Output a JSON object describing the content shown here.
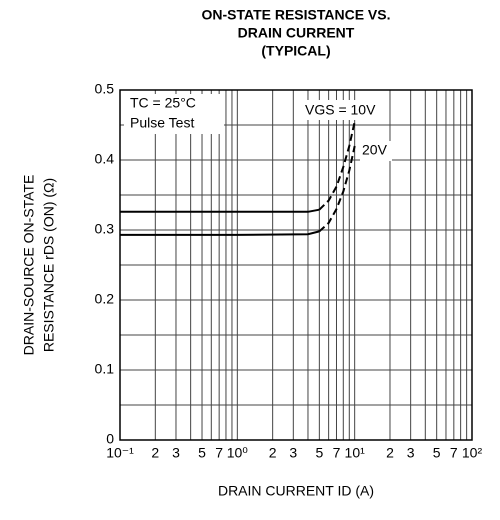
{
  "chart_data": {
    "type": "line",
    "title": [
      "ON-STATE RESISTANCE VS.",
      "DRAIN CURRENT",
      "(TYPICAL)"
    ],
    "x_label": "DRAIN CURRENT  ID (A)",
    "y_label": [
      "DRAIN-SOURCE ON-STATE",
      "RESISTANCE  rDS (ON) (Ω)"
    ],
    "annotations": [
      "TC = 25°C",
      "Pulse Test"
    ],
    "x_scale": "log",
    "xlim": [
      0.1,
      100
    ],
    "ylim": [
      0,
      0.5
    ],
    "xticks": [
      {
        "value": 0.1,
        "label": "10⁻¹"
      },
      {
        "value": 0.2,
        "label": "2"
      },
      {
        "value": 0.3,
        "label": "3"
      },
      {
        "value": 0.5,
        "label": "5"
      },
      {
        "value": 0.7,
        "label": "7"
      },
      {
        "value": 1,
        "label": "10⁰"
      },
      {
        "value": 2,
        "label": "2"
      },
      {
        "value": 3,
        "label": "3"
      },
      {
        "value": 5,
        "label": "5"
      },
      {
        "value": 7,
        "label": "7"
      },
      {
        "value": 10,
        "label": "10¹"
      },
      {
        "value": 20,
        "label": "2"
      },
      {
        "value": 30,
        "label": "3"
      },
      {
        "value": 50,
        "label": "5"
      },
      {
        "value": 70,
        "label": "7"
      },
      {
        "value": 100,
        "label": "10²"
      }
    ],
    "xgrid": [
      0.2,
      0.3,
      0.4,
      0.5,
      0.6,
      0.7,
      0.8,
      0.9,
      1,
      2,
      3,
      4,
      5,
      6,
      7,
      8,
      9,
      10,
      20,
      30,
      40,
      50,
      60,
      70,
      80,
      90
    ],
    "yticks": [
      0,
      0.1,
      0.2,
      0.3,
      0.4,
      0.5
    ],
    "ygrid": [
      0.05,
      0.1,
      0.15,
      0.2,
      0.25,
      0.3,
      0.35,
      0.4,
      0.45
    ],
    "grid": true,
    "series": [
      {
        "name": "VGS = 10V",
        "color": "#000000",
        "segments": [
          {
            "style": "solid",
            "x": [
              0.1,
              1,
              4,
              5
            ],
            "values": [
              0.326,
              0.326,
              0.326,
              0.329
            ]
          },
          {
            "style": "dashed",
            "x": [
              5,
              6,
              7,
              8,
              9,
              10
            ],
            "values": [
              0.329,
              0.342,
              0.362,
              0.39,
              0.42,
              0.455
            ]
          }
        ]
      },
      {
        "name": "20V",
        "color": "#000000",
        "segments": [
          {
            "style": "solid",
            "x": [
              0.1,
              1,
              4,
              5
            ],
            "values": [
              0.293,
              0.293,
              0.294,
              0.298
            ]
          },
          {
            "style": "dashed",
            "x": [
              5,
              6,
              7,
              8,
              9,
              10
            ],
            "values": [
              0.298,
              0.31,
              0.33,
              0.355,
              0.385,
              0.42
            ]
          }
        ]
      }
    ]
  }
}
